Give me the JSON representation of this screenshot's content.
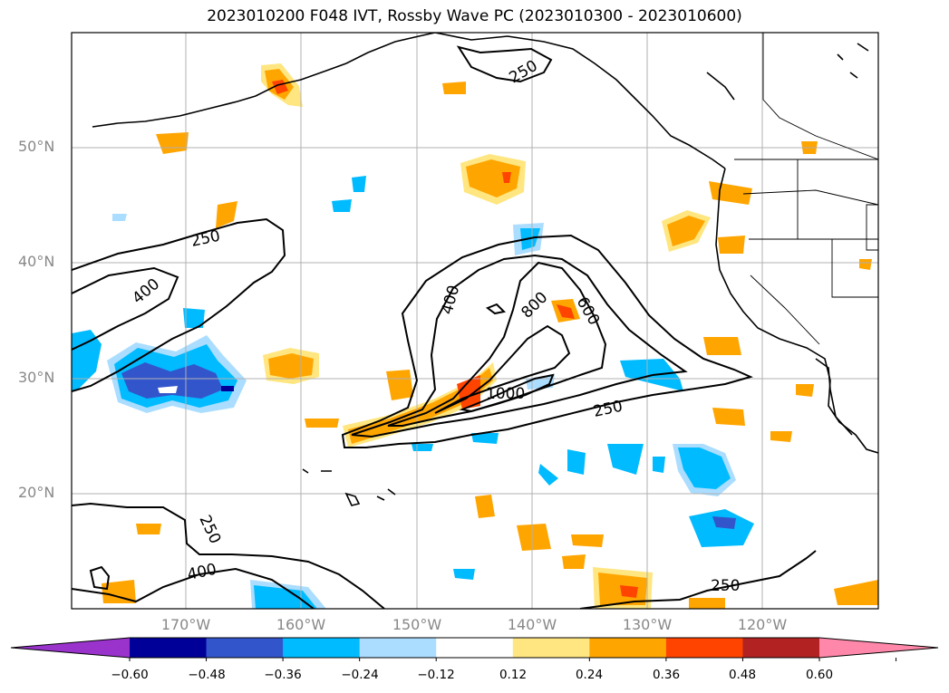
{
  "title": "2023010200 F048 IVT, Rossby Wave PC (2023010300 - 2023010600)",
  "lat_labels": [
    "50°N",
    "40°N",
    "30°N",
    "20°N"
  ],
  "lon_labels": [
    "170°W",
    "160°W",
    "150°W",
    "140°W",
    "130°W",
    "120°W"
  ],
  "contour_labels": [
    "250",
    "400",
    "250",
    "400",
    "800",
    "600",
    "1000",
    "250",
    "250",
    "400",
    "250"
  ],
  "colorbar": {
    "ticks": [
      "−0.60",
      "−0.48",
      "−0.36",
      "−0.24",
      "−0.12",
      "0.12",
      "0.24",
      "0.36",
      "0.48",
      "0.60"
    ],
    "colors": [
      "#9933cc",
      "#000099",
      "#3355cc",
      "#00bbff",
      "#aaddff",
      "#ffffff",
      "#ffe680",
      "#ffa500",
      "#ff4400",
      "#b22222",
      "#ff88aa"
    ]
  }
}
